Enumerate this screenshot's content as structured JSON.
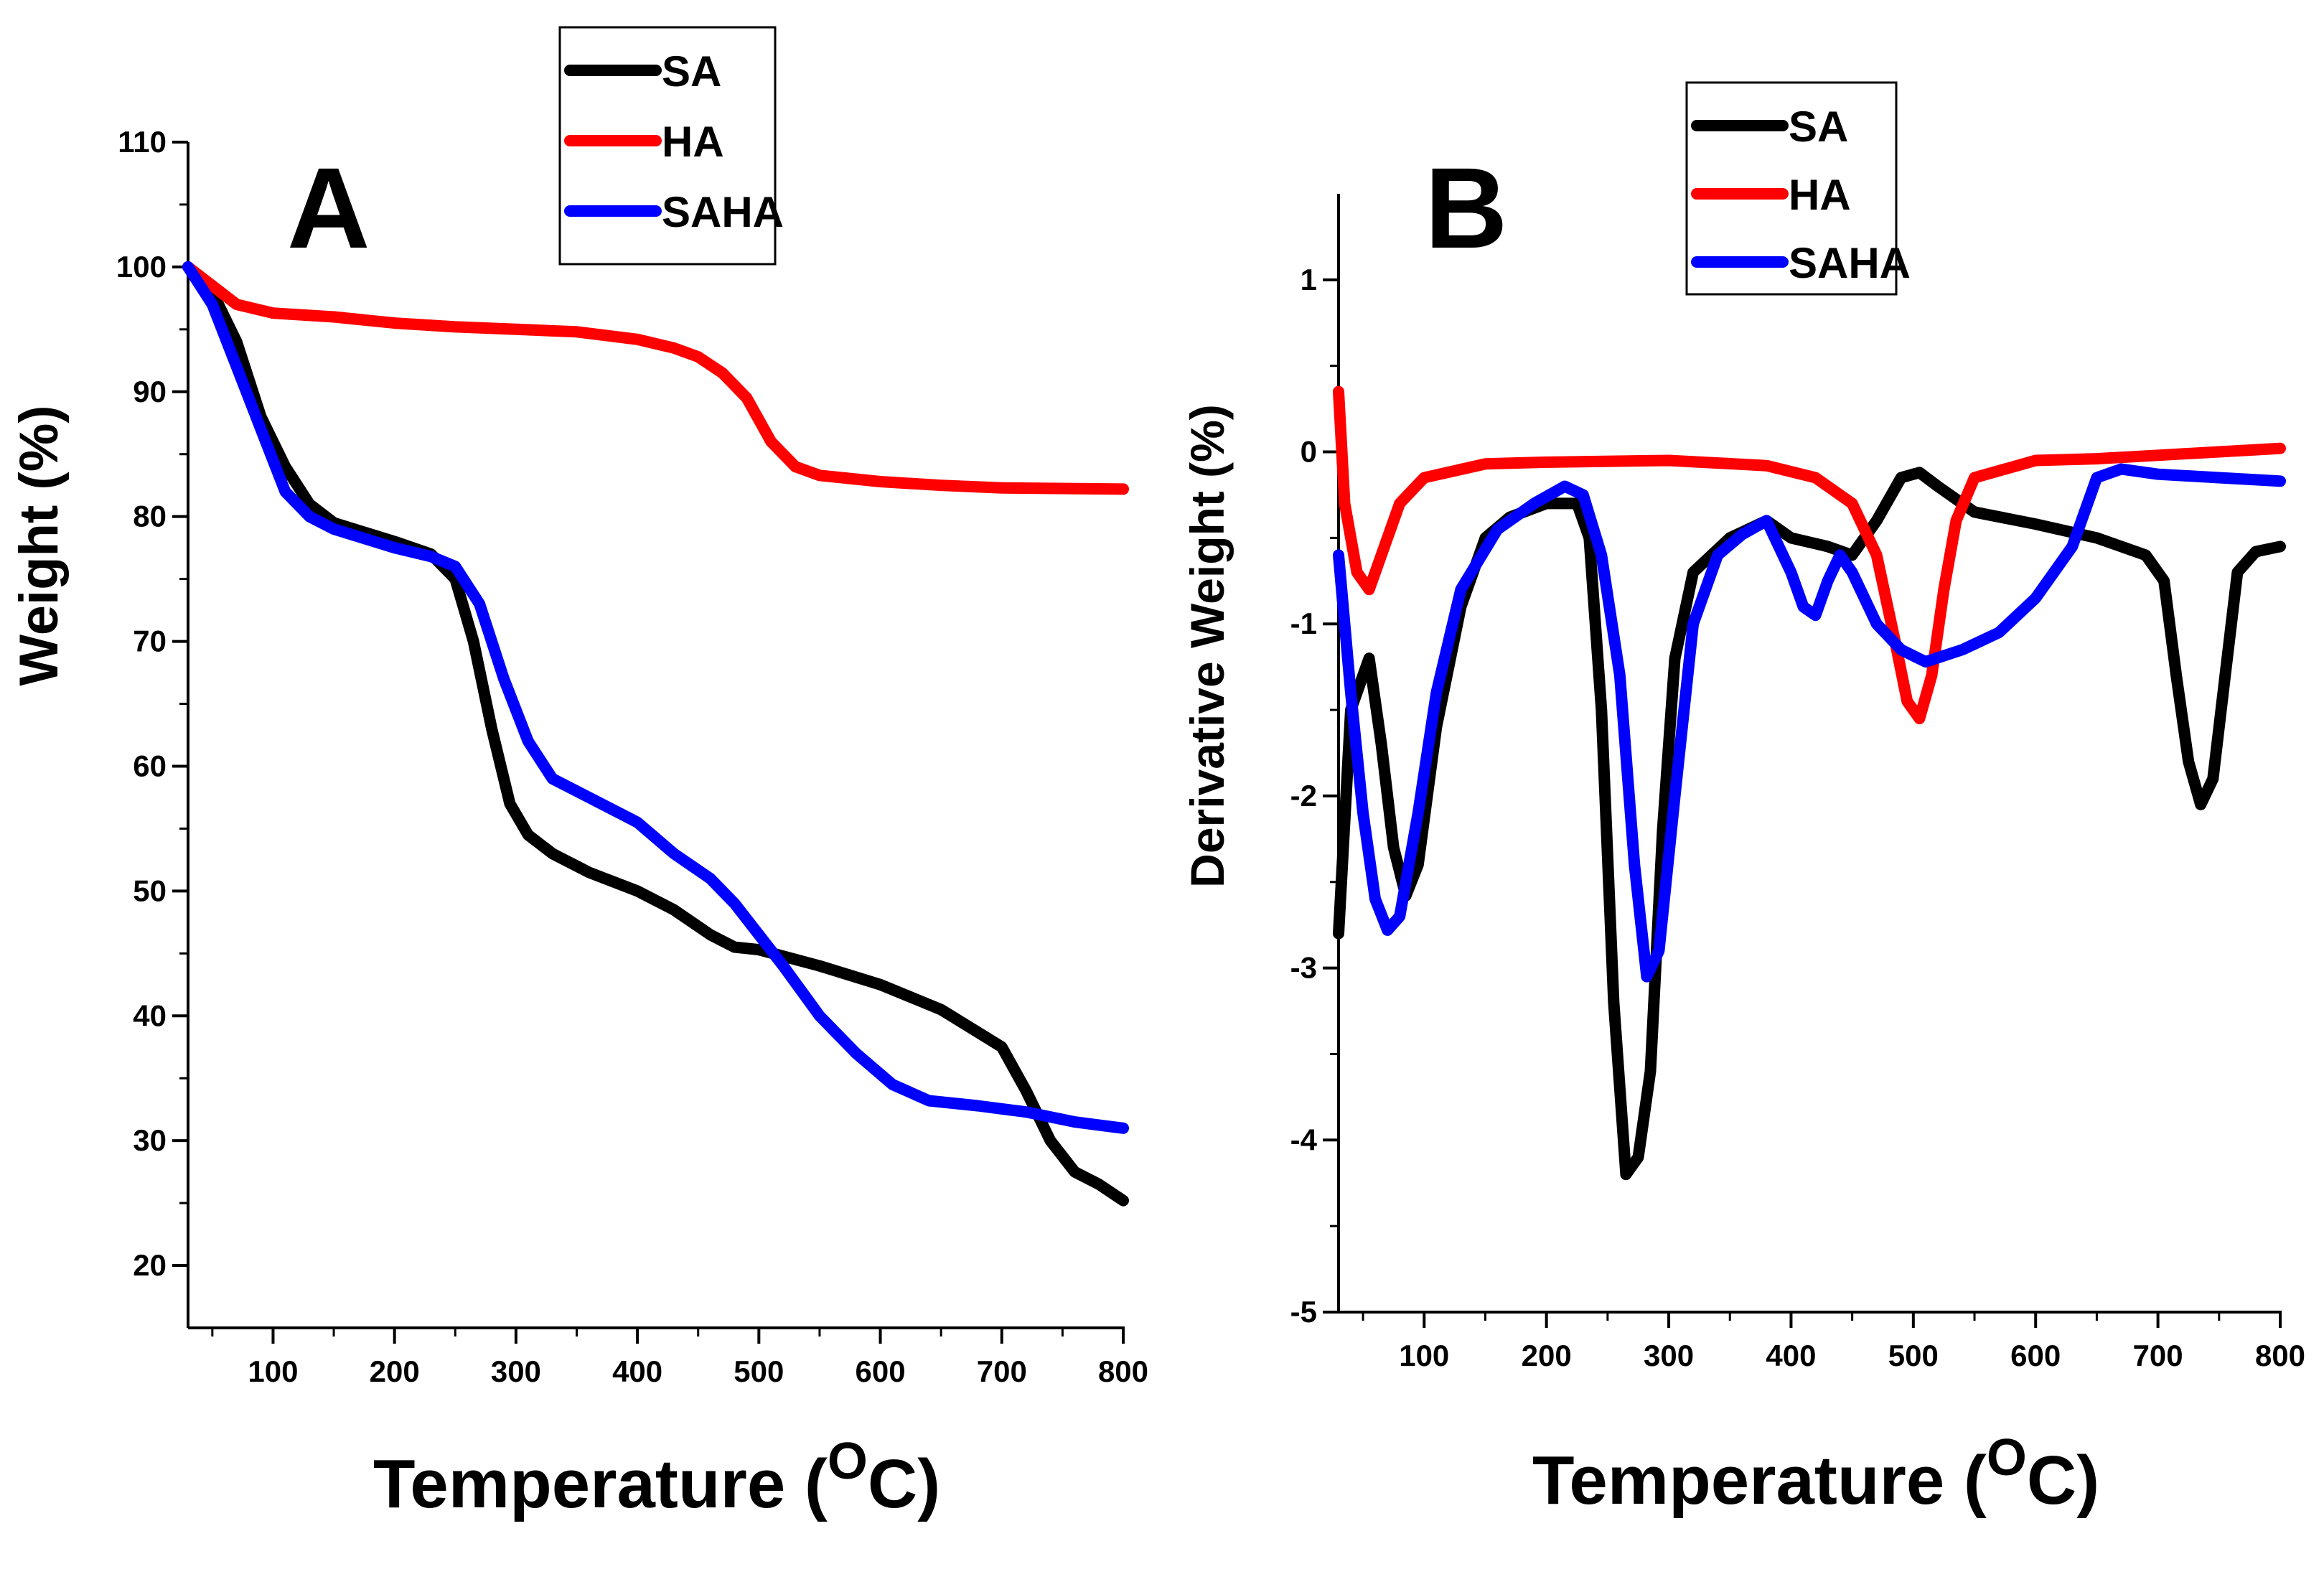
{
  "chart_data": [
    {
      "type": "line",
      "panel_label": "A",
      "xlabel": "Temperature (",
      "xlabel_unit": "C)",
      "xlabel_sup": "O",
      "ylabel": "Weight (%)",
      "xlim": [
        30,
        800
      ],
      "ylim": [
        15,
        110
      ],
      "x_ticks": [
        100,
        200,
        300,
        400,
        500,
        600,
        700,
        800
      ],
      "y_ticks": [
        20,
        30,
        40,
        50,
        60,
        70,
        80,
        90,
        100,
        110
      ],
      "legend_position": "top-right",
      "series": [
        {
          "name": "SA",
          "color": "#000000",
          "points": [
            [
              30,
              100
            ],
            [
              50,
              98
            ],
            [
              70,
              94
            ],
            [
              90,
              88
            ],
            [
              110,
              84
            ],
            [
              130,
              81
            ],
            [
              150,
              79.5
            ],
            [
              200,
              78
            ],
            [
              230,
              77
            ],
            [
              250,
              75
            ],
            [
              265,
              70
            ],
            [
              280,
              63
            ],
            [
              295,
              57
            ],
            [
              310,
              54.5
            ],
            [
              330,
              53
            ],
            [
              360,
              51.5
            ],
            [
              400,
              50
            ],
            [
              430,
              48.5
            ],
            [
              460,
              46.5
            ],
            [
              480,
              45.5
            ],
            [
              500,
              45.3
            ],
            [
              550,
              44
            ],
            [
              600,
              42.5
            ],
            [
              650,
              40.5
            ],
            [
              700,
              37.5
            ],
            [
              720,
              34
            ],
            [
              740,
              30
            ],
            [
              760,
              27.5
            ],
            [
              780,
              26.5
            ],
            [
              800,
              25.2
            ]
          ]
        },
        {
          "name": "HA",
          "color": "#ff0000",
          "points": [
            [
              30,
              100
            ],
            [
              50,
              98.5
            ],
            [
              70,
              97
            ],
            [
              100,
              96.3
            ],
            [
              150,
              96
            ],
            [
              200,
              95.5
            ],
            [
              250,
              95.2
            ],
            [
              300,
              95
            ],
            [
              350,
              94.8
            ],
            [
              400,
              94.2
            ],
            [
              430,
              93.5
            ],
            [
              450,
              92.8
            ],
            [
              470,
              91.5
            ],
            [
              490,
              89.5
            ],
            [
              510,
              86
            ],
            [
              530,
              84
            ],
            [
              550,
              83.3
            ],
            [
              600,
              82.8
            ],
            [
              650,
              82.5
            ],
            [
              700,
              82.3
            ],
            [
              800,
              82.2
            ]
          ]
        },
        {
          "name": "SAHA",
          "color": "#0000ff",
          "points": [
            [
              30,
              100
            ],
            [
              50,
              97
            ],
            [
              70,
              92
            ],
            [
              90,
              87
            ],
            [
              110,
              82
            ],
            [
              130,
              80
            ],
            [
              150,
              79
            ],
            [
              200,
              77.5
            ],
            [
              230,
              76.8
            ],
            [
              250,
              76
            ],
            [
              270,
              73
            ],
            [
              290,
              67
            ],
            [
              310,
              62
            ],
            [
              330,
              59
            ],
            [
              360,
              57.5
            ],
            [
              400,
              55.5
            ],
            [
              430,
              53
            ],
            [
              460,
              51
            ],
            [
              480,
              49
            ],
            [
              500,
              46.5
            ],
            [
              520,
              44
            ],
            [
              550,
              40
            ],
            [
              580,
              37
            ],
            [
              610,
              34.5
            ],
            [
              640,
              33.2
            ],
            [
              680,
              32.8
            ],
            [
              720,
              32.3
            ],
            [
              760,
              31.5
            ],
            [
              800,
              31
            ]
          ]
        }
      ]
    },
    {
      "type": "line",
      "panel_label": "B",
      "xlabel": "Temperature (",
      "xlabel_unit": "C)",
      "xlabel_sup": "O",
      "ylabel": "Derivative Weight (%)",
      "xlim": [
        30,
        800
      ],
      "ylim": [
        -5,
        1.5
      ],
      "x_ticks": [
        100,
        200,
        300,
        400,
        500,
        600,
        700,
        800
      ],
      "y_ticks": [
        -5,
        -4,
        -3,
        -2,
        -1,
        0,
        1
      ],
      "legend_position": "top-center",
      "series": [
        {
          "name": "SA",
          "color": "#000000",
          "points": [
            [
              30,
              -2.8
            ],
            [
              40,
              -1.5
            ],
            [
              55,
              -1.2
            ],
            [
              65,
              -1.7
            ],
            [
              75,
              -2.3
            ],
            [
              85,
              -2.58
            ],
            [
              95,
              -2.4
            ],
            [
              110,
              -1.6
            ],
            [
              130,
              -0.9
            ],
            [
              150,
              -0.5
            ],
            [
              170,
              -0.38
            ],
            [
              200,
              -0.3
            ],
            [
              225,
              -0.3
            ],
            [
              235,
              -0.5
            ],
            [
              245,
              -1.5
            ],
            [
              255,
              -3.2
            ],
            [
              265,
              -4.2
            ],
            [
              275,
              -4.1
            ],
            [
              285,
              -3.6
            ],
            [
              295,
              -2.2
            ],
            [
              305,
              -1.2
            ],
            [
              320,
              -0.7
            ],
            [
              350,
              -0.5
            ],
            [
              380,
              -0.4
            ],
            [
              400,
              -0.5
            ],
            [
              430,
              -0.55
            ],
            [
              450,
              -0.6
            ],
            [
              470,
              -0.4
            ],
            [
              490,
              -0.15
            ],
            [
              505,
              -0.12
            ],
            [
              520,
              -0.2
            ],
            [
              550,
              -0.35
            ],
            [
              600,
              -0.42
            ],
            [
              650,
              -0.5
            ],
            [
              690,
              -0.6
            ],
            [
              705,
              -0.75
            ],
            [
              715,
              -1.3
            ],
            [
              725,
              -1.8
            ],
            [
              735,
              -2.05
            ],
            [
              745,
              -1.9
            ],
            [
              755,
              -1.3
            ],
            [
              765,
              -0.7
            ],
            [
              780,
              -0.58
            ],
            [
              800,
              -0.55
            ]
          ]
        },
        {
          "name": "HA",
          "color": "#ff0000",
          "points": [
            [
              30,
              0.35
            ],
            [
              35,
              -0.3
            ],
            [
              45,
              -0.7
            ],
            [
              55,
              -0.8
            ],
            [
              65,
              -0.6
            ],
            [
              80,
              -0.3
            ],
            [
              100,
              -0.15
            ],
            [
              150,
              -0.07
            ],
            [
              200,
              -0.06
            ],
            [
              300,
              -0.05
            ],
            [
              380,
              -0.08
            ],
            [
              420,
              -0.15
            ],
            [
              450,
              -0.3
            ],
            [
              470,
              -0.6
            ],
            [
              485,
              -1.1
            ],
            [
              495,
              -1.45
            ],
            [
              505,
              -1.55
            ],
            [
              515,
              -1.3
            ],
            [
              525,
              -0.8
            ],
            [
              535,
              -0.4
            ],
            [
              550,
              -0.15
            ],
            [
              600,
              -0.05
            ],
            [
              650,
              -0.04
            ],
            [
              700,
              -0.02
            ],
            [
              750,
              0.0
            ],
            [
              800,
              0.02
            ]
          ]
        },
        {
          "name": "SAHA",
          "color": "#0000ff",
          "points": [
            [
              30,
              -0.6
            ],
            [
              40,
              -1.4
            ],
            [
              50,
              -2.1
            ],
            [
              60,
              -2.6
            ],
            [
              70,
              -2.78
            ],
            [
              80,
              -2.7
            ],
            [
              95,
              -2.1
            ],
            [
              110,
              -1.4
            ],
            [
              130,
              -0.8
            ],
            [
              160,
              -0.45
            ],
            [
              190,
              -0.3
            ],
            [
              215,
              -0.2
            ],
            [
              230,
              -0.25
            ],
            [
              245,
              -0.6
            ],
            [
              260,
              -1.3
            ],
            [
              272,
              -2.4
            ],
            [
              282,
              -3.05
            ],
            [
              292,
              -2.9
            ],
            [
              305,
              -2.0
            ],
            [
              320,
              -1.0
            ],
            [
              340,
              -0.6
            ],
            [
              360,
              -0.48
            ],
            [
              380,
              -0.4
            ],
            [
              400,
              -0.7
            ],
            [
              410,
              -0.9
            ],
            [
              420,
              -0.95
            ],
            [
              430,
              -0.75
            ],
            [
              440,
              -0.6
            ],
            [
              450,
              -0.7
            ],
            [
              470,
              -1.0
            ],
            [
              490,
              -1.15
            ],
            [
              510,
              -1.22
            ],
            [
              540,
              -1.15
            ],
            [
              570,
              -1.05
            ],
            [
              600,
              -0.85
            ],
            [
              630,
              -0.55
            ],
            [
              650,
              -0.15
            ],
            [
              670,
              -0.1
            ],
            [
              700,
              -0.13
            ],
            [
              750,
              -0.15
            ],
            [
              800,
              -0.17
            ]
          ]
        }
      ]
    }
  ]
}
